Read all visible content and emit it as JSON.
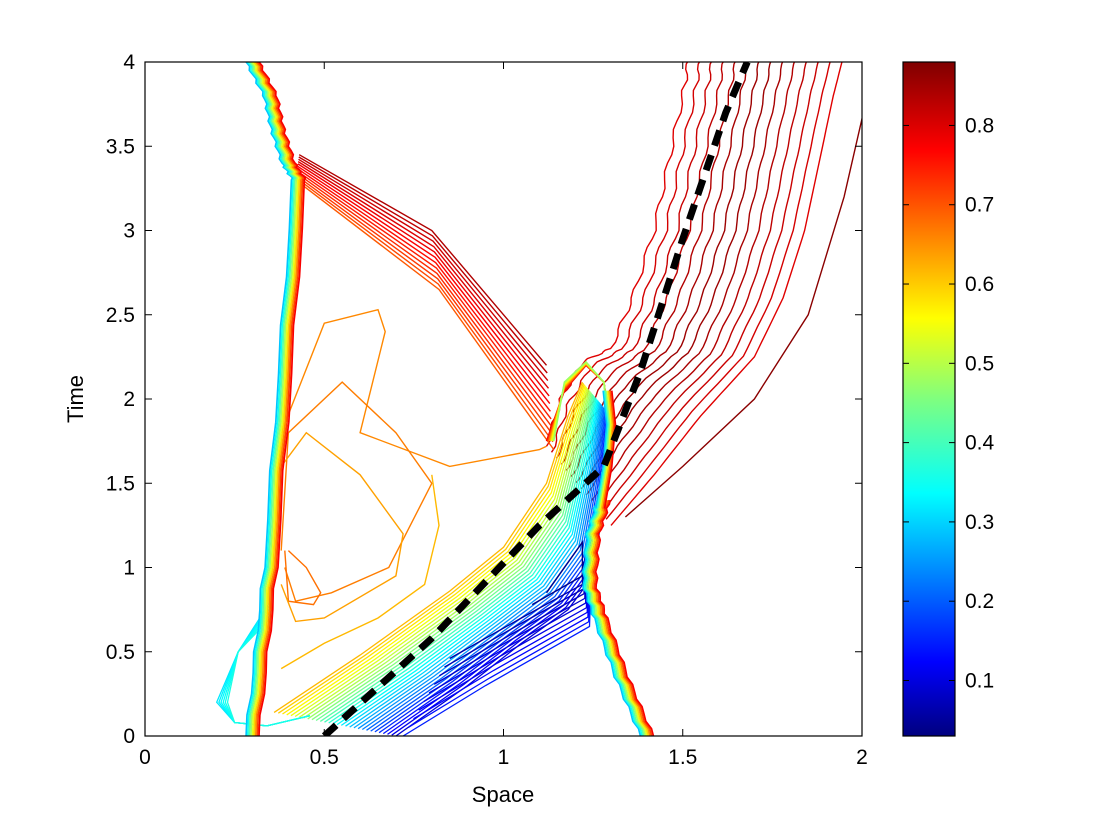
{
  "chart_data": {
    "type": "contour",
    "xlabel": "Space",
    "ylabel": "Time",
    "xlim": [
      0,
      2
    ],
    "ylim": [
      0,
      4
    ],
    "x_ticks": [
      "0",
      "0.5",
      "1",
      "1.5",
      "2"
    ],
    "y_ticks": [
      "0",
      "0.5",
      "1",
      "1.5",
      "2",
      "2.5",
      "3",
      "3.5",
      "4"
    ],
    "grid": false,
    "colormap": "jet",
    "colorbar": {
      "range": [
        0.03,
        0.88
      ],
      "ticks": [
        "0.1",
        "0.2",
        "0.3",
        "0.4",
        "0.5",
        "0.6",
        "0.7",
        "0.8"
      ]
    },
    "dashed_line": {
      "color": "#000000",
      "points": [
        [
          0.5,
          0
        ],
        [
          0.8,
          0.58
        ],
        [
          1.1,
          1.25
        ],
        [
          1.28,
          1.6
        ],
        [
          1.38,
          2.15
        ],
        [
          1.5,
          2.95
        ],
        [
          1.62,
          3.7
        ],
        [
          1.68,
          4.0
        ]
      ]
    },
    "features": [
      {
        "name": "left-shock",
        "x": [
          0.3,
          0.35,
          0.37,
          0.4,
          0.43,
          0.35,
          0.3
        ],
        "t": [
          4.0,
          3.8,
          3.6,
          3.4,
          3.3,
          1.0,
          0.0
        ],
        "level": 0.3
      },
      {
        "name": "right-shock",
        "x": [
          1.4,
          1.33,
          1.27,
          1.24,
          1.25,
          1.28
        ],
        "t": [
          0.0,
          0.35,
          0.7,
          0.9,
          1.2,
          1.4
        ],
        "level": 0.3
      },
      {
        "name": "upper-contours",
        "level": 0.85
      },
      {
        "name": "mid-plateau",
        "level": 0.65
      },
      {
        "name": "low-wedge",
        "level": 0.1
      }
    ]
  }
}
